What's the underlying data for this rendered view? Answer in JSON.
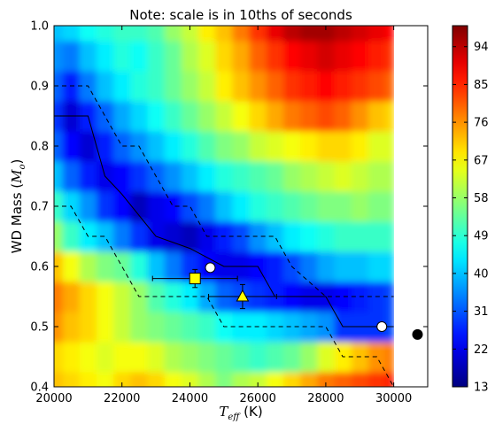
{
  "chart_data": {
    "type": "heatmap",
    "title": "Note: scale is in 10ths of seconds",
    "xlabel_math": "T",
    "xlabel_sub": "eff",
    "xlabel_unit": " (K)",
    "ylabel_text": "WD Mass (",
    "ylabel_math": "M",
    "ylabel_sub": "o",
    "ylabel_close": ")",
    "xlim": [
      20000,
      31000
    ],
    "ylim": [
      0.4,
      1.0
    ],
    "x_ticks": [
      20000,
      22000,
      24000,
      26000,
      28000,
      30000
    ],
    "y_ticks": [
      0.4,
      0.5,
      0.6,
      0.7,
      0.8,
      0.9,
      1.0
    ],
    "x_tick_labels": [
      "20000",
      "22000",
      "24000",
      "26000",
      "28000",
      "30000"
    ],
    "y_tick_labels": [
      "0.4",
      "0.5",
      "0.6",
      "0.7",
      "0.8",
      "0.9",
      "1.0"
    ],
    "colorbar": {
      "min": 13,
      "max": 99,
      "ticks": [
        13,
        22,
        31,
        40,
        49,
        58,
        67,
        76,
        85,
        94
      ],
      "tick_labels": [
        "13",
        "22",
        "31",
        "40",
        "49",
        "58",
        "67",
        "76",
        "85",
        "94"
      ],
      "colormap": "jet"
    },
    "grid": {
      "x": [
        20000,
        20500,
        21000,
        21500,
        22000,
        22500,
        23000,
        23500,
        24000,
        24500,
        25000,
        25500,
        26000,
        26500,
        27000,
        27500,
        28000,
        28500,
        29000,
        29500,
        30000
      ],
      "y": [
        0.4,
        0.45,
        0.5,
        0.55,
        0.6,
        0.65,
        0.7,
        0.75,
        0.8,
        0.85,
        0.9,
        0.95,
        1.0
      ],
      "z": [
        [
          72,
          70,
          68,
          66,
          70,
          72,
          70,
          66,
          64,
          60,
          56,
          60,
          62,
          66,
          70,
          74,
          78,
          80,
          82,
          84,
          86
        ],
        [
          70,
          68,
          66,
          64,
          66,
          66,
          64,
          60,
          58,
          56,
          54,
          52,
          50,
          52,
          54,
          58,
          64,
          68,
          72,
          76,
          78
        ],
        [
          76,
          72,
          70,
          66,
          62,
          58,
          56,
          54,
          52,
          50,
          46,
          44,
          44,
          42,
          40,
          38,
          36,
          28,
          28,
          28,
          30
        ],
        [
          78,
          74,
          70,
          66,
          62,
          58,
          52,
          48,
          44,
          38,
          32,
          30,
          28,
          26,
          24,
          22,
          22,
          24,
          26,
          28,
          30
        ],
        [
          72,
          66,
          60,
          56,
          54,
          48,
          40,
          34,
          28,
          24,
          22,
          22,
          24,
          26,
          30,
          34,
          38,
          40,
          40,
          42,
          42
        ],
        [
          58,
          50,
          44,
          40,
          34,
          28,
          22,
          20,
          18,
          22,
          26,
          30,
          36,
          40,
          44,
          46,
          48,
          50,
          50,
          50,
          50
        ],
        [
          50,
          42,
          36,
          28,
          24,
          18,
          22,
          24,
          30,
          34,
          40,
          44,
          48,
          50,
          52,
          54,
          56,
          56,
          58,
          56,
          56
        ],
        [
          40,
          32,
          26,
          22,
          24,
          28,
          32,
          36,
          40,
          44,
          48,
          50,
          52,
          54,
          58,
          60,
          62,
          64,
          62,
          60,
          60
        ],
        [
          32,
          24,
          20,
          26,
          32,
          36,
          40,
          44,
          48,
          52,
          56,
          58,
          62,
          64,
          66,
          68,
          70,
          70,
          68,
          64,
          64
        ],
        [
          28,
          20,
          26,
          32,
          38,
          42,
          46,
          50,
          54,
          58,
          62,
          66,
          70,
          74,
          78,
          80,
          82,
          80,
          76,
          72,
          70
        ],
        [
          32,
          26,
          34,
          40,
          44,
          48,
          50,
          54,
          58,
          62,
          68,
          72,
          76,
          80,
          84,
          86,
          88,
          86,
          84,
          82,
          80
        ],
        [
          36,
          34,
          40,
          44,
          48,
          46,
          50,
          54,
          60,
          64,
          70,
          74,
          80,
          84,
          88,
          90,
          92,
          90,
          88,
          86,
          84
        ],
        [
          40,
          42,
          46,
          48,
          50,
          50,
          52,
          58,
          62,
          68,
          72,
          78,
          84,
          90,
          94,
          96,
          96,
          94,
          92,
          90,
          88
        ]
      ]
    },
    "lines": [
      {
        "name": "center",
        "style": "solid",
        "x": [
          20000,
          21000,
          21500,
          22000,
          23000,
          24000,
          25000,
          26000,
          26500,
          27000,
          28000,
          28500,
          30000
        ],
        "y": [
          0.85,
          0.85,
          0.75,
          0.72,
          0.65,
          0.63,
          0.6,
          0.6,
          0.55,
          0.55,
          0.55,
          0.5,
          0.5
        ]
      },
      {
        "name": "upper",
        "style": "dashed",
        "x": [
          20000,
          20500,
          21000,
          21500,
          22000,
          22500,
          23000,
          23500,
          24000,
          24500,
          25000,
          26500,
          27000,
          28000,
          30000
        ],
        "y": [
          0.9,
          0.9,
          0.9,
          0.85,
          0.8,
          0.8,
          0.75,
          0.7,
          0.7,
          0.65,
          0.65,
          0.65,
          0.6,
          0.55,
          0.55
        ]
      },
      {
        "name": "lower",
        "style": "dashed",
        "x": [
          20000,
          20500,
          21000,
          21500,
          22000,
          22500,
          23000,
          24000,
          24500,
          25000,
          26000,
          27000,
          28000,
          28500,
          29000,
          29500,
          30000
        ],
        "y": [
          0.7,
          0.7,
          0.65,
          0.65,
          0.6,
          0.55,
          0.55,
          0.55,
          0.55,
          0.5,
          0.5,
          0.5,
          0.5,
          0.45,
          0.45,
          0.45,
          0.4
        ]
      }
    ],
    "points": [
      {
        "marker": "circle-open",
        "x": 24600,
        "y": 0.598
      },
      {
        "marker": "circle-open",
        "x": 29650,
        "y": 0.5
      },
      {
        "marker": "circle-filled",
        "x": 30700,
        "y": 0.487
      },
      {
        "marker": "square",
        "x": 24150,
        "y": 0.58,
        "xerr": [
          1250,
          1250
        ],
        "yerr": [
          0.015,
          0.015
        ]
      },
      {
        "marker": "triangle",
        "x": 25550,
        "y": 0.55,
        "xerr": [
          1000,
          1000
        ],
        "yerr": [
          0.02,
          0.02
        ]
      }
    ],
    "colors": {
      "square": "#ffff00",
      "triangle": "#ffff00",
      "open_marker_fill": "#ffffff",
      "filled_marker": "#000000"
    }
  }
}
